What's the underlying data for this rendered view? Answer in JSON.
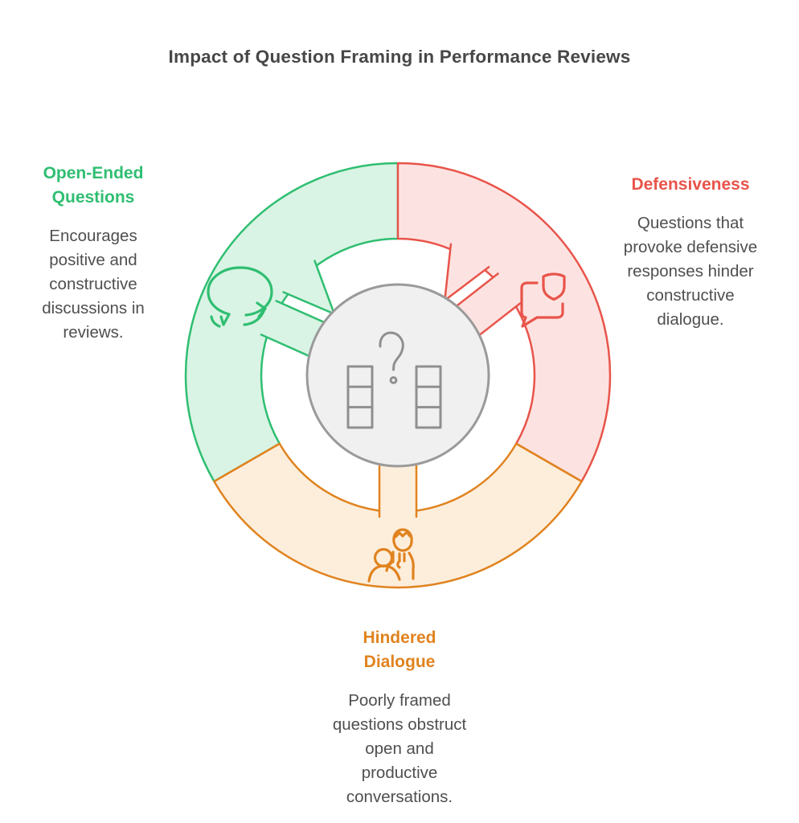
{
  "title": "Impact of Question Framing in Performance Reviews",
  "colors": {
    "title": "#474747",
    "text": "#4f4f4f",
    "green": "#2fbe71",
    "green_fill": "#d9f4e4",
    "red": "#e8544a",
    "red_fill": "#fce3e1",
    "orange": "#e0831f",
    "orange_fill": "#fdeedc",
    "hub_fill": "#f0f0f0",
    "hub_stroke": "#9a9a9a",
    "hub_icon": "#8f8f8f"
  },
  "segments": [
    {
      "name": "open-ended-questions",
      "heading_lines": [
        "Open-Ended",
        "Questions"
      ],
      "body_lines": [
        "Encourages",
        "positive and",
        "constructive",
        "discussions in",
        "reviews."
      ],
      "icon": "chat-bubble-arrow-icon"
    },
    {
      "name": "defensiveness",
      "heading_lines": [
        "Defensiveness"
      ],
      "body_lines": [
        "Questions that",
        "provoke defensive",
        "responses hinder",
        "constructive",
        "dialogue."
      ],
      "icon": "shield-speech-bubble-icon"
    },
    {
      "name": "hindered-dialogue",
      "heading_lines": [
        "Hindered",
        "Dialogue"
      ],
      "body_lines": [
        "Poorly framed",
        "questions obstruct",
        "open and",
        "productive",
        "conversations."
      ],
      "icon": "thinking-people-icon"
    }
  ],
  "center": {
    "icon": "question-mark-comparison-icon"
  }
}
